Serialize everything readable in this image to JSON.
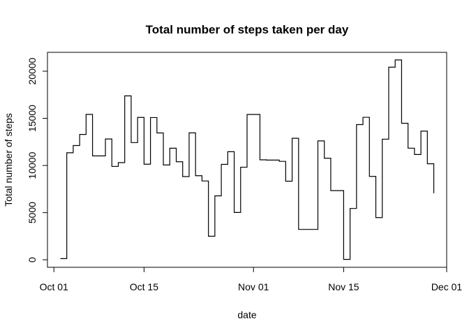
{
  "chart_data": {
    "type": "line",
    "line_style": "step",
    "title": "Total number of steps taken per day",
    "xlabel": "date",
    "ylabel": "Total number of steps",
    "x_ticks": [
      {
        "date": "2012-10-01",
        "label": "Oct 01"
      },
      {
        "date": "2012-10-15",
        "label": "Oct 15"
      },
      {
        "date": "2012-11-01",
        "label": "Nov 01"
      },
      {
        "date": "2012-11-15",
        "label": "Nov 15"
      },
      {
        "date": "2012-12-01",
        "label": "Dec 01"
      }
    ],
    "y_ticks": [
      {
        "value": 0,
        "label": "0"
      },
      {
        "value": 5000,
        "label": "5000"
      },
      {
        "value": 10000,
        "label": "10000"
      },
      {
        "value": 15000,
        "label": "15000"
      },
      {
        "value": 20000,
        "label": "20000"
      }
    ],
    "xlim": [
      "2012-09-30",
      "2012-12-01"
    ],
    "ylim": [
      -800,
      22000
    ],
    "grid": false,
    "color": "#000000",
    "series": [
      {
        "x": [
          "2012-10-02",
          "2012-10-03",
          "2012-10-04",
          "2012-10-05",
          "2012-10-06",
          "2012-10-07",
          "2012-10-09",
          "2012-10-10",
          "2012-10-11",
          "2012-10-12",
          "2012-10-13",
          "2012-10-14",
          "2012-10-15",
          "2012-10-16",
          "2012-10-17",
          "2012-10-18",
          "2012-10-19",
          "2012-10-20",
          "2012-10-21",
          "2012-10-22",
          "2012-10-23",
          "2012-10-24",
          "2012-10-25",
          "2012-10-26",
          "2012-10-27",
          "2012-10-28",
          "2012-10-29",
          "2012-10-30",
          "2012-10-31",
          "2012-11-02",
          "2012-11-03",
          "2012-11-05",
          "2012-11-06",
          "2012-11-07",
          "2012-11-08",
          "2012-11-11",
          "2012-11-12",
          "2012-11-13",
          "2012-11-15",
          "2012-11-16",
          "2012-11-17",
          "2012-11-18",
          "2012-11-19",
          "2012-11-20",
          "2012-11-21",
          "2012-11-22",
          "2012-11-23",
          "2012-11-24",
          "2012-11-25",
          "2012-11-26",
          "2012-11-27",
          "2012-11-28",
          "2012-11-29"
        ],
        "y": [
          126,
          11352,
          12116,
          13294,
          15420,
          11015,
          12811,
          9900,
          10304,
          17382,
          12426,
          15098,
          10139,
          15084,
          13452,
          10056,
          11829,
          10395,
          8821,
          13460,
          8918,
          8355,
          2492,
          6778,
          10119,
          11458,
          5018,
          9819,
          15414,
          10600,
          10571,
          10439,
          8334,
          12883,
          3219,
          12608,
          10765,
          7336,
          41,
          5441,
          14339,
          15110,
          8841,
          4472,
          12787,
          20427,
          21194,
          14478,
          11834,
          11162,
          13646,
          10183,
          7047
        ]
      }
    ]
  }
}
